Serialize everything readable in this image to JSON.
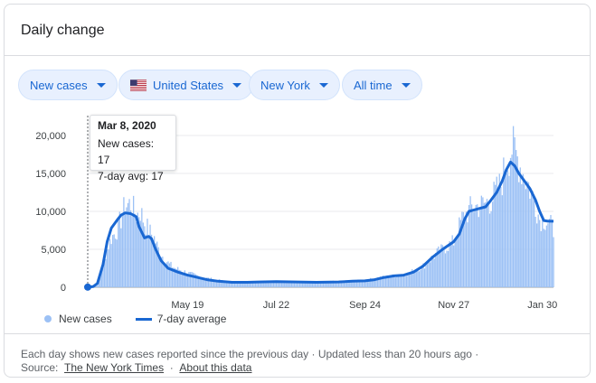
{
  "card": {
    "title": "Daily change"
  },
  "filters": {
    "metric": "New cases",
    "country": "United States",
    "region": "New York",
    "period": "All time"
  },
  "tooltip": {
    "date": "Mar 8, 2020",
    "new_cases": "New cases: 17",
    "avg": "7-day avg: 17"
  },
  "legend": {
    "bars_label": "New cases",
    "line_label": "7-day average"
  },
  "footer": {
    "line1": "Each day shows new cases reported since the previous day · Updated less than 20 hours ago ·",
    "source_prefix": "Source:",
    "source_link": "The New York Times",
    "separator": "·",
    "about_link": "About this data"
  },
  "colors": {
    "bars": "#9cc1f5",
    "line": "#1967d2",
    "chip_bg": "#e8f0fe",
    "chip_text": "#1967d2"
  },
  "chart_data": {
    "type": "bar",
    "title": "",
    "xlabel": "",
    "ylabel": "",
    "ylim": [
      0,
      20000
    ],
    "y_ticks": [
      "0",
      "5,000",
      "10,000",
      "15,000",
      "20,000"
    ],
    "x_ticks": [
      "May 19",
      "Jul 22",
      "Sep 24",
      "Nov 27",
      "Jan 30"
    ],
    "grid": true,
    "legend_position": "bottom-left",
    "series": [
      {
        "name": "New cases",
        "type": "bar",
        "points": [
          [
            "2020-03-08",
            17
          ],
          [
            "2020-03-15",
            200
          ],
          [
            "2020-03-18",
            2500
          ],
          [
            "2020-03-22",
            5000
          ],
          [
            "2020-03-25",
            6500
          ],
          [
            "2020-03-29",
            7500
          ],
          [
            "2020-04-01",
            9000
          ],
          [
            "2020-04-04",
            10800
          ],
          [
            "2020-04-08",
            11000
          ],
          [
            "2020-04-12",
            9500
          ],
          [
            "2020-04-15",
            10000
          ],
          [
            "2020-04-18",
            8500
          ],
          [
            "2020-04-21",
            7500
          ],
          [
            "2020-04-25",
            6500
          ],
          [
            "2020-04-28",
            5000
          ],
          [
            "2020-05-02",
            3800
          ],
          [
            "2020-05-06",
            3000
          ],
          [
            "2020-05-10",
            2500
          ],
          [
            "2020-05-15",
            2200
          ],
          [
            "2020-05-19",
            1900
          ],
          [
            "2020-05-26",
            1500
          ],
          [
            "2020-06-02",
            1200
          ],
          [
            "2020-06-10",
            900
          ],
          [
            "2020-06-20",
            700
          ],
          [
            "2020-07-01",
            650
          ],
          [
            "2020-07-15",
            750
          ],
          [
            "2020-07-22",
            800
          ],
          [
            "2020-08-05",
            700
          ],
          [
            "2020-08-20",
            700
          ],
          [
            "2020-09-05",
            750
          ],
          [
            "2020-09-24",
            900
          ],
          [
            "2020-10-05",
            1300
          ],
          [
            "2020-10-15",
            1500
          ],
          [
            "2020-10-25",
            1800
          ],
          [
            "2020-11-05",
            2800
          ],
          [
            "2020-11-15",
            4500
          ],
          [
            "2020-11-27",
            6000
          ],
          [
            "2020-12-03",
            9000
          ],
          [
            "2020-12-10",
            10500
          ],
          [
            "2020-12-17",
            10800
          ],
          [
            "2020-12-24",
            11500
          ],
          [
            "2020-12-31",
            13500
          ],
          [
            "2021-01-04",
            16500
          ],
          [
            "2021-01-08",
            18500
          ],
          [
            "2021-01-12",
            17000
          ],
          [
            "2021-01-16",
            15000
          ],
          [
            "2021-01-20",
            13500
          ],
          [
            "2021-01-24",
            11500
          ],
          [
            "2021-01-28",
            9000
          ],
          [
            "2021-01-31",
            9000
          ],
          [
            "2021-02-04",
            8500
          ],
          [
            "2021-02-07",
            7500
          ]
        ]
      },
      {
        "name": "7-day average",
        "type": "line",
        "points": [
          [
            "2020-03-08",
            17
          ],
          [
            "2020-03-12",
            100
          ],
          [
            "2020-03-15",
            500
          ],
          [
            "2020-03-19",
            3000
          ],
          [
            "2020-03-22",
            6000
          ],
          [
            "2020-03-25",
            7800
          ],
          [
            "2020-03-29",
            8800
          ],
          [
            "2020-04-01",
            9500
          ],
          [
            "2020-04-04",
            9800
          ],
          [
            "2020-04-08",
            9700
          ],
          [
            "2020-04-12",
            9300
          ],
          [
            "2020-04-14",
            8000
          ],
          [
            "2020-04-18",
            6500
          ],
          [
            "2020-04-21",
            6700
          ],
          [
            "2020-04-23",
            6400
          ],
          [
            "2020-04-26",
            5000
          ],
          [
            "2020-04-30",
            3500
          ],
          [
            "2020-05-05",
            2500
          ],
          [
            "2020-05-12",
            2000
          ],
          [
            "2020-05-19",
            1600
          ],
          [
            "2020-05-26",
            1300
          ],
          [
            "2020-06-02",
            1000
          ],
          [
            "2020-06-10",
            800
          ],
          [
            "2020-06-20",
            650
          ],
          [
            "2020-07-01",
            650
          ],
          [
            "2020-07-10",
            700
          ],
          [
            "2020-07-22",
            750
          ],
          [
            "2020-08-05",
            700
          ],
          [
            "2020-08-20",
            650
          ],
          [
            "2020-09-05",
            700
          ],
          [
            "2020-09-15",
            800
          ],
          [
            "2020-09-24",
            850
          ],
          [
            "2020-10-01",
            1000
          ],
          [
            "2020-10-08",
            1300
          ],
          [
            "2020-10-15",
            1500
          ],
          [
            "2020-10-22",
            1600
          ],
          [
            "2020-10-29",
            2000
          ],
          [
            "2020-11-05",
            2800
          ],
          [
            "2020-11-12",
            4000
          ],
          [
            "2020-11-19",
            5000
          ],
          [
            "2020-11-27",
            6000
          ],
          [
            "2020-12-01",
            7000
          ],
          [
            "2020-12-05",
            9000
          ],
          [
            "2020-12-08",
            10000
          ],
          [
            "2020-12-12",
            10200
          ],
          [
            "2020-12-16",
            10400
          ],
          [
            "2020-12-20",
            10600
          ],
          [
            "2020-12-24",
            11500
          ],
          [
            "2020-12-28",
            12500
          ],
          [
            "2021-01-01",
            14000
          ],
          [
            "2021-01-04",
            15500
          ],
          [
            "2021-01-07",
            16500
          ],
          [
            "2021-01-10",
            16000
          ],
          [
            "2021-01-13",
            15000
          ],
          [
            "2021-01-17",
            14000
          ],
          [
            "2021-01-21",
            13000
          ],
          [
            "2021-01-25",
            11500
          ],
          [
            "2021-01-28",
            10000
          ],
          [
            "2021-01-31",
            8800
          ],
          [
            "2021-02-03",
            8700
          ],
          [
            "2021-02-07",
            8700
          ]
        ]
      }
    ]
  }
}
